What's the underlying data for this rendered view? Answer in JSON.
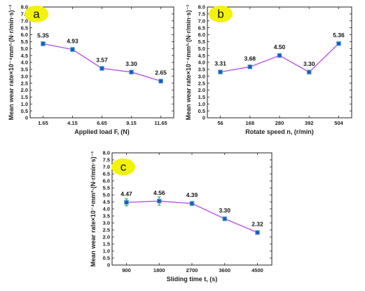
{
  "theme": {
    "line_color": "#b94be6",
    "marker_color": "#1d55c8",
    "marker_edge": "#4ea8c8",
    "error_color": "#2ea043",
    "badge_color": "#f2f20a"
  },
  "chart_data": [
    {
      "panel": "a",
      "type": "line",
      "x": [
        "1.65",
        "4.15",
        "6.65",
        "9.15",
        "11.65"
      ],
      "values": [
        5.35,
        4.93,
        3.57,
        3.3,
        2.65
      ],
      "error": [
        0.15,
        0.15,
        0.12,
        0.1,
        0.08
      ],
      "data_labels": [
        "5.35",
        "4.93",
        "3.57",
        "3.30",
        "2.65"
      ],
      "xlabel": "Applied load F, (N)",
      "ylabel": "Mean wear rate×10⁻⁴mm²·(N·r/min·s)⁻¹",
      "ylim": [
        0,
        8
      ],
      "yticks": [
        "0",
        "0.5",
        "1.0",
        "1.5",
        "2.0",
        "2.5",
        "3.0",
        "3.5",
        "4.0",
        "4.5",
        "5.0",
        "5.5",
        "6.0",
        "6.5",
        "7.0",
        "7.5",
        "8.0"
      ],
      "grid": false
    },
    {
      "panel": "b",
      "type": "line",
      "x": [
        "56",
        "168",
        "280",
        "392",
        "504"
      ],
      "values": [
        3.31,
        3.68,
        4.5,
        3.3,
        5.36
      ],
      "error": [
        0.12,
        0.12,
        0.1,
        0.1,
        0.08
      ],
      "data_labels": [
        "3.31",
        "3.68",
        "4.50",
        "3.30",
        "5.36"
      ],
      "xlabel": "Rotate speed n, (r/min)",
      "ylabel": "Mean wear rate×10⁻⁴mm²·(N·r/min·s)⁻¹",
      "ylim": [
        0,
        8
      ],
      "yticks": [
        "0",
        "0.5",
        "1.0",
        "1.5",
        "2.0",
        "2.5",
        "3.0",
        "3.5",
        "4.0",
        "4.5",
        "5.0",
        "5.5",
        "6.0",
        "6.5",
        "7.0",
        "7.5",
        "8.0"
      ],
      "grid": false
    },
    {
      "panel": "c",
      "type": "line",
      "x": [
        "900",
        "1800",
        "2700",
        "3600",
        "4500"
      ],
      "values": [
        4.47,
        4.56,
        4.39,
        3.3,
        2.32
      ],
      "error": [
        0.25,
        0.3,
        0.15,
        0.1,
        0.08
      ],
      "data_labels": [
        "4.47",
        "4.56",
        "4.39",
        "3.30",
        "2.32"
      ],
      "xlabel": "Sliding time t, (s)",
      "ylabel": "Mean wear rate×10⁻⁴mm²·(N·r/min·s)⁻¹",
      "ylim": [
        0,
        8
      ],
      "yticks": [
        "0",
        "0.5",
        "1.0",
        "1.5",
        "2.0",
        "2.5",
        "3.0",
        "3.5",
        "4.0",
        "4.5",
        "5.0",
        "5.5",
        "6.0",
        "6.5",
        "7.0",
        "7.5",
        "8.0"
      ],
      "grid": false
    }
  ]
}
